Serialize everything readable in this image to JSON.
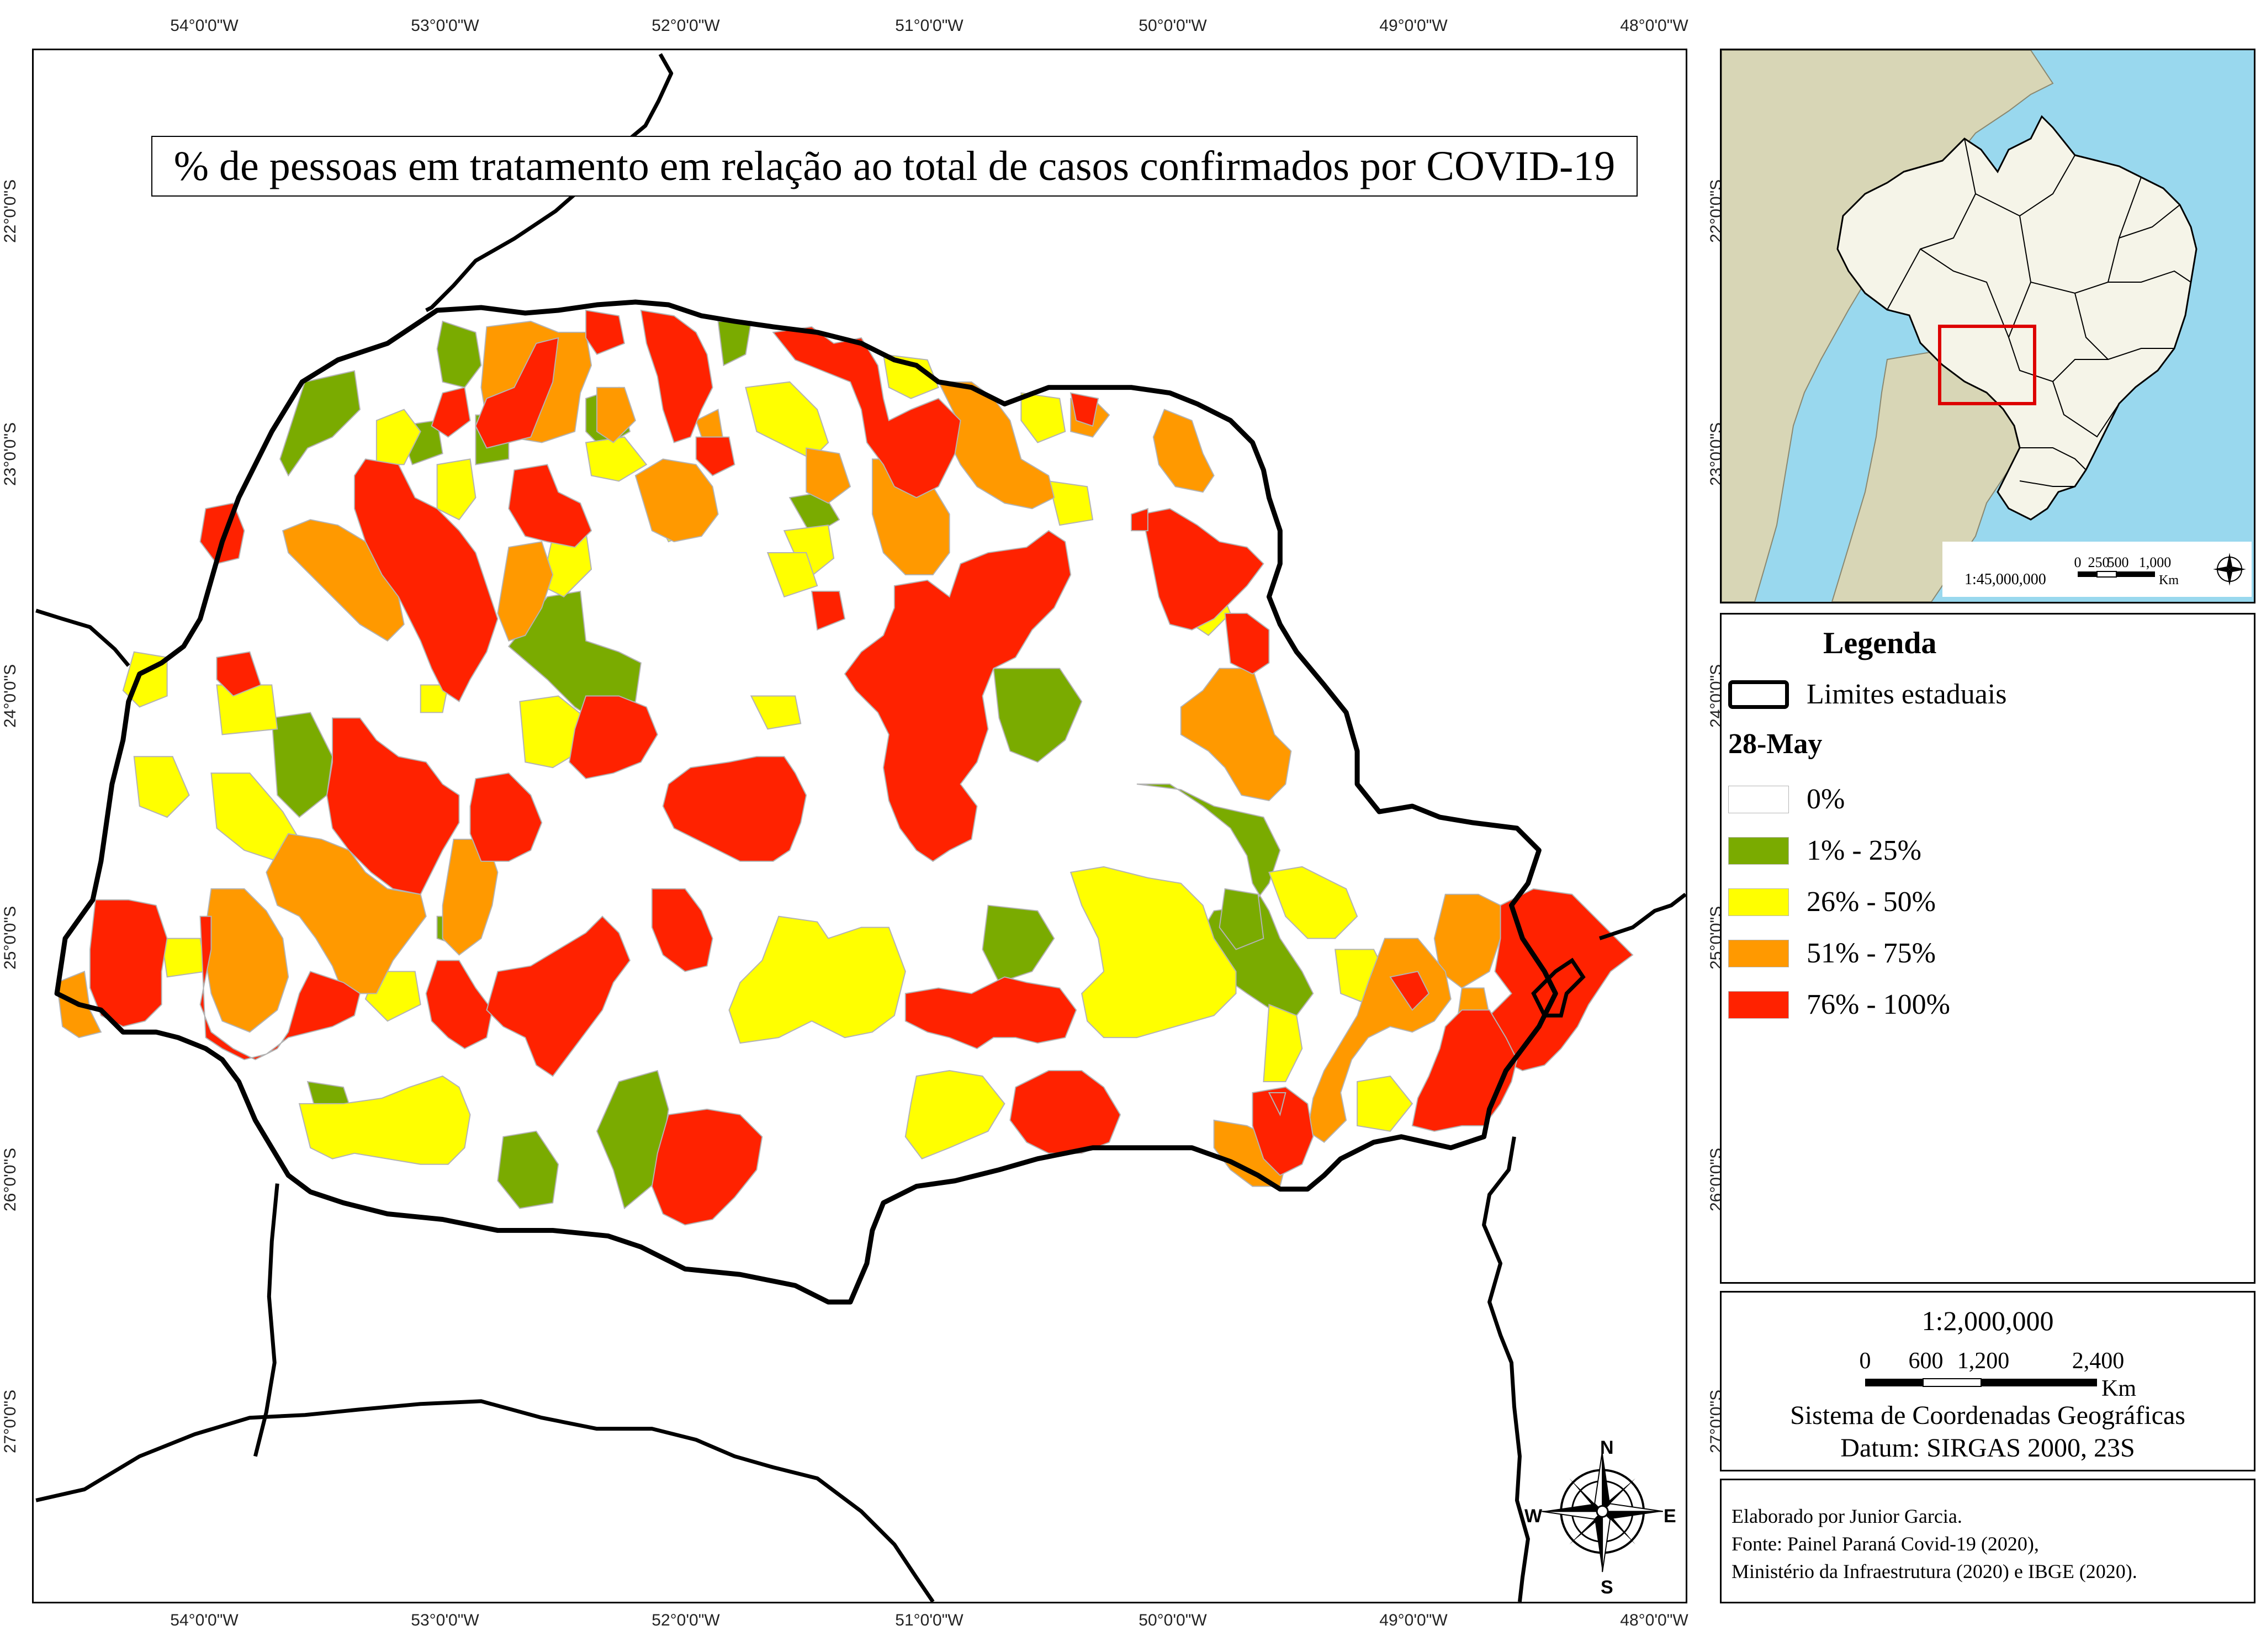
{
  "map": {
    "title": "% de pessoas em tratamento em relação ao total de casos confirmados por COVID-19",
    "longitude_ticks": [
      "54°0'0\"W",
      "53°0'0\"W",
      "52°0'0\"W",
      "51°0'0\"W",
      "50°0'0\"W",
      "49°0'0\"W",
      "48°0'0\"W"
    ],
    "latitude_ticks_left": [
      "22°0'0\"S",
      "23°0'0\"S",
      "24°0'0\"S",
      "25°0'0\"S",
      "26°0'0\"S",
      "27°0'0\"S"
    ],
    "latitude_ticks_right": [
      "22°0'0\"S",
      "23°0'0\"S",
      "24°0'0\"S",
      "25°0'0\"S",
      "26°0'0\"S",
      "27°0'0\"S"
    ],
    "compass": {
      "north": "N",
      "south": "S",
      "east": "E",
      "west": "W"
    }
  },
  "legend": {
    "title": "Legenda",
    "state_limits_label": "Limites estaduais",
    "date_label": "28-May",
    "classes": [
      {
        "label": "0%",
        "color": "#ffffff"
      },
      {
        "label": "1% - 25%",
        "color": "#7aab00"
      },
      {
        "label": "26% - 50%",
        "color": "#ffff00"
      },
      {
        "label": "51% - 75%",
        "color": "#ff9900"
      },
      {
        "label": "76% - 100%",
        "color": "#ff2200"
      }
    ]
  },
  "scale": {
    "ratio": "1:2,000,000",
    "labels": [
      "0",
      "600",
      "1,200",
      "2,400"
    ],
    "unit": "Km"
  },
  "coordinates": {
    "system": "Sistema de Coordenadas Geográficas",
    "datum": "Datum: SIRGAS 2000, 23S"
  },
  "credits": {
    "author": "Elaborado por Junior Garcia.",
    "source_1": "Fonte: Painel Paraná Covid-19 (2020),",
    "source_2": "Ministério da Infraestrutura (2020) e IBGE (2020)."
  },
  "inset": {
    "scale_ratio": "1:45,000,000",
    "scale_labels": [
      "0",
      "250",
      "500",
      "1,000"
    ],
    "scale_unit": "Km",
    "highlight_color": "#dd0000",
    "ocean_color": "#99d8ee",
    "brazil_color": "#f5f4e8",
    "neighbor_color": "#d8d6b6"
  }
}
